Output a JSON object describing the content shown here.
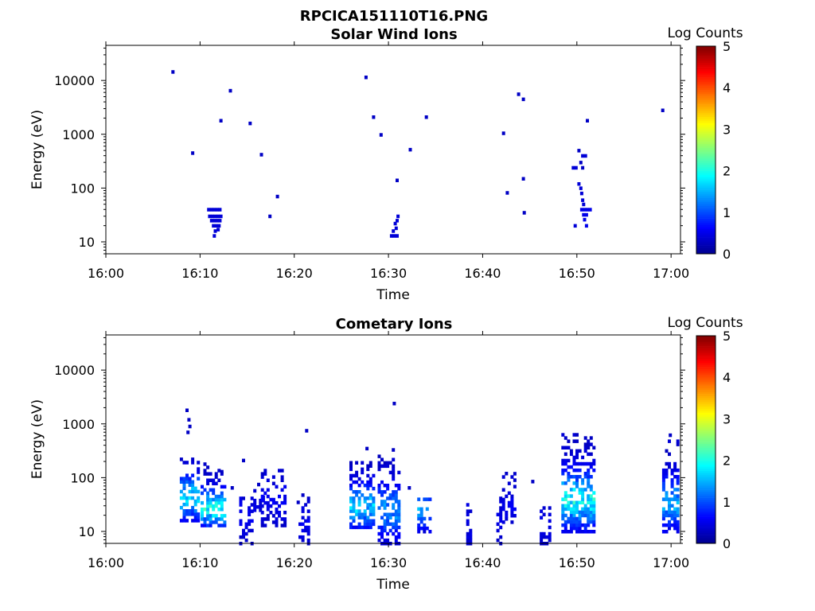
{
  "figure_title": "RPCICA151110T16.PNG",
  "colors": {
    "jet": [
      "#00008f",
      "#0000ff",
      "#0080ff",
      "#00ffff",
      "#80ff80",
      "#ffff00",
      "#ff8000",
      "#ff0000",
      "#800000"
    ]
  },
  "chart_data": [
    {
      "type": "heatmap",
      "title": "Solar Wind Ions",
      "xlabel": "Time",
      "ylabel": "Energy (eV)",
      "x_tick_labels": [
        "16:00",
        "16:10",
        "16:20",
        "16:30",
        "16:40",
        "16:50",
        "17:00"
      ],
      "x_range_min": [
        0,
        61
      ],
      "y_tick_labels": [
        "10",
        "100",
        "1000",
        "10000"
      ],
      "y_scale": "log",
      "y_range_eV": [
        6,
        45000
      ],
      "colorbar": {
        "label": "Log Counts",
        "range": [
          0,
          5
        ],
        "tick_labels": [
          "0",
          "1",
          "2",
          "3",
          "4",
          "5"
        ]
      },
      "cells": [
        [
          7.1,
          14500,
          0.3
        ],
        [
          9.2,
          450,
          0.3
        ],
        [
          12.2,
          1800,
          0.3
        ],
        [
          13.2,
          6500,
          0.3
        ],
        [
          15.3,
          1600,
          0.3
        ],
        [
          16.5,
          420,
          0.3
        ],
        [
          17.4,
          30,
          0.3
        ],
        [
          18.2,
          70,
          0.3
        ],
        [
          10.9,
          40,
          0.4
        ],
        [
          11.2,
          40,
          0.4
        ],
        [
          11.5,
          40,
          0.4
        ],
        [
          11.8,
          40,
          0.4
        ],
        [
          12.1,
          40,
          0.4
        ],
        [
          11.0,
          30,
          0.4
        ],
        [
          11.3,
          30,
          0.4
        ],
        [
          11.6,
          30,
          0.4
        ],
        [
          11.9,
          30,
          0.4
        ],
        [
          12.2,
          30,
          0.4
        ],
        [
          11.2,
          25,
          0.4
        ],
        [
          11.5,
          25,
          0.4
        ],
        [
          11.8,
          25,
          0.4
        ],
        [
          12.1,
          25,
          0.4
        ],
        [
          11.4,
          20,
          0.4
        ],
        [
          11.7,
          20,
          0.4
        ],
        [
          12.0,
          20,
          0.4
        ],
        [
          11.6,
          16,
          0.4
        ],
        [
          11.9,
          17,
          0.4
        ],
        [
          11.5,
          13,
          0.4
        ],
        [
          27.6,
          11500,
          0.3
        ],
        [
          28.4,
          2100,
          0.3
        ],
        [
          29.2,
          980,
          0.3
        ],
        [
          30.9,
          140,
          0.3
        ],
        [
          32.3,
          520,
          0.3
        ],
        [
          34.0,
          2100,
          0.3
        ],
        [
          30.3,
          13,
          0.4
        ],
        [
          30.6,
          13,
          0.4
        ],
        [
          30.9,
          13,
          0.4
        ],
        [
          30.5,
          16,
          0.4
        ],
        [
          30.8,
          18,
          0.4
        ],
        [
          30.7,
          22,
          0.4
        ],
        [
          30.9,
          25,
          0.4
        ],
        [
          31.0,
          30,
          0.4
        ],
        [
          42.2,
          1050,
          0.3
        ],
        [
          42.6,
          82,
          0.3
        ],
        [
          43.8,
          5600,
          0.3
        ],
        [
          44.3,
          4500,
          0.3
        ],
        [
          44.3,
          150,
          0.3
        ],
        [
          44.4,
          35,
          0.3
        ],
        [
          49.6,
          240,
          0.4
        ],
        [
          49.9,
          240,
          0.4
        ],
        [
          50.2,
          500,
          0.3
        ],
        [
          50.4,
          300,
          0.3
        ],
        [
          50.6,
          240,
          0.3
        ],
        [
          50.6,
          400,
          0.4
        ],
        [
          50.9,
          400,
          0.4
        ],
        [
          51.1,
          1800,
          0.3
        ],
        [
          59.1,
          2800,
          0.3
        ],
        [
          50.2,
          120,
          0.4
        ],
        [
          50.4,
          100,
          0.4
        ],
        [
          50.5,
          80,
          0.4
        ],
        [
          50.6,
          60,
          0.4
        ],
        [
          50.7,
          50,
          0.4
        ],
        [
          50.5,
          40,
          0.5
        ],
        [
          50.8,
          40,
          0.5
        ],
        [
          51.1,
          40,
          0.5
        ],
        [
          51.4,
          40,
          0.5
        ],
        [
          50.7,
          32,
          0.5
        ],
        [
          51.0,
          32,
          0.5
        ],
        [
          50.8,
          26,
          0.5
        ],
        [
          51.0,
          20,
          0.5
        ],
        [
          49.8,
          20,
          0.4
        ]
      ]
    },
    {
      "type": "heatmap",
      "title": "Cometary Ions",
      "xlabel": "Time",
      "ylabel": "Energy (eV)",
      "x_tick_labels": [
        "16:00",
        "16:10",
        "16:20",
        "16:30",
        "16:40",
        "16:50",
        "17:00"
      ],
      "x_range_min": [
        0,
        61
      ],
      "y_tick_labels": [
        "10",
        "100",
        "1000",
        "10000"
      ],
      "y_scale": "log",
      "y_range_eV": [
        6,
        45000
      ],
      "colorbar": {
        "label": "Log Counts",
        "range": [
          0,
          5
        ],
        "tick_labels": [
          "0",
          "1",
          "2",
          "3",
          "4",
          "5"
        ]
      },
      "columns": [
        {
          "t0": 8.0,
          "t1": 9.8,
          "lo": 16,
          "hi": 250,
          "peak": 1.9,
          "pe": 45,
          "spread": 0.35,
          "density": 0.7
        },
        {
          "t0": 10.2,
          "t1": 12.6,
          "lo": 13,
          "hi": 180,
          "peak": 2.2,
          "pe": 28,
          "spread": 0.3,
          "density": 0.75
        },
        {
          "t0": 14.3,
          "t1": 15.7,
          "lo": 6,
          "hi": 45,
          "peak": 0.5,
          "pe": 20,
          "spread": 0.35,
          "density": 0.55
        },
        {
          "t0": 15.8,
          "t1": 16.8,
          "lo": 25,
          "hi": 60,
          "peak": 0.4,
          "pe": 40,
          "spread": 0.3,
          "density": 0.5
        },
        {
          "t0": 16.6,
          "t1": 19.0,
          "lo": 13,
          "hi": 150,
          "peak": 0.5,
          "pe": 40,
          "spread": 0.35,
          "density": 0.55
        },
        {
          "t0": 20.1,
          "t1": 20.6,
          "lo": 35,
          "hi": 60,
          "peak": 0.3,
          "pe": 45,
          "spread": 0.2,
          "density": 0.5
        },
        {
          "t0": 20.6,
          "t1": 21.6,
          "lo": 6,
          "hi": 50,
          "peak": 0.5,
          "pe": 15,
          "spread": 0.35,
          "density": 0.6
        },
        {
          "t0": 26.0,
          "t1": 28.4,
          "lo": 12,
          "hi": 200,
          "peak": 1.8,
          "pe": 30,
          "spread": 0.35,
          "density": 0.7
        },
        {
          "t0": 29.0,
          "t1": 31.3,
          "lo": 6,
          "hi": 320,
          "peak": 1.5,
          "pe": 25,
          "spread": 0.4,
          "density": 0.65
        },
        {
          "t0": 33.2,
          "t1": 34.6,
          "lo": 10,
          "hi": 45,
          "peak": 1.5,
          "pe": 25,
          "spread": 0.3,
          "density": 0.7
        },
        {
          "t0": 38.4,
          "t1": 38.9,
          "lo": 6,
          "hi": 35,
          "peak": 0.4,
          "pe": 15,
          "spread": 0.4,
          "density": 0.7
        },
        {
          "t0": 41.6,
          "t1": 42.0,
          "lo": 6,
          "hi": 45,
          "peak": 0.4,
          "pe": 15,
          "spread": 0.4,
          "density": 0.6
        },
        {
          "t0": 42.2,
          "t1": 43.6,
          "lo": 15,
          "hi": 120,
          "peak": 0.5,
          "pe": 30,
          "spread": 0.3,
          "density": 0.5
        },
        {
          "t0": 46.2,
          "t1": 47.2,
          "lo": 6,
          "hi": 35,
          "peak": 0.4,
          "pe": 15,
          "spread": 0.35,
          "density": 0.6
        },
        {
          "t0": 48.5,
          "t1": 51.8,
          "lo": 10,
          "hi": 700,
          "peak": 2.1,
          "pe": 40,
          "spread": 0.45,
          "density": 0.75
        },
        {
          "t0": 59.2,
          "t1": 61.0,
          "lo": 10,
          "hi": 500,
          "peak": 1.6,
          "pe": 35,
          "spread": 0.4,
          "density": 0.7
        }
      ],
      "scatter": [
        [
          8.6,
          1800,
          0.3
        ],
        [
          8.8,
          1200,
          0.3
        ],
        [
          8.9,
          900,
          0.3
        ],
        [
          8.7,
          700,
          0.3
        ],
        [
          12.3,
          130,
          0.3
        ],
        [
          13.4,
          65,
          0.3
        ],
        [
          14.6,
          210,
          0.3
        ],
        [
          16.2,
          75,
          0.3
        ],
        [
          21.3,
          750,
          0.3
        ],
        [
          27.7,
          350,
          0.3
        ],
        [
          30.5,
          330,
          0.3
        ],
        [
          30.6,
          2400,
          0.3
        ],
        [
          32.2,
          65,
          0.3
        ],
        [
          42.5,
          120,
          0.3
        ],
        [
          45.3,
          85,
          0.3
        ],
        [
          59.9,
          620,
          0.3
        ]
      ]
    }
  ]
}
